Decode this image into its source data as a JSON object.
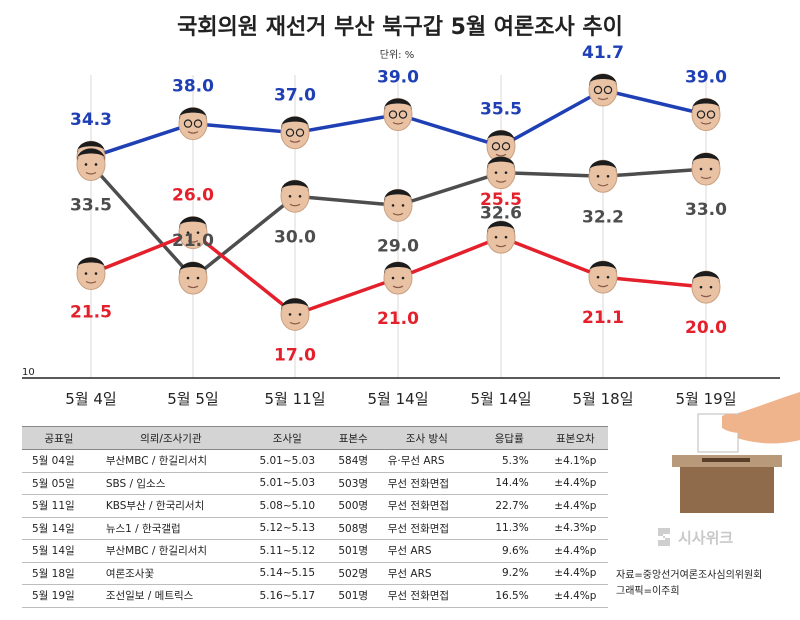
{
  "title": "국회의원 재선거 부산 북구갑 5월 여론조사 추이",
  "unit_label": "단위: %",
  "chart_data": {
    "type": "line",
    "title": "국회의원 재선거 부산 북구갑 5월 여론조사 추이",
    "xlabel": "",
    "ylabel": "",
    "categories": [
      "5월 4일",
      "5월 5일",
      "5월 11일",
      "5월 14일",
      "5월 14일",
      "5월 18일",
      "5월 19일"
    ],
    "y_axis_min_label": "10",
    "series": [
      {
        "color": "#1f3fb4",
        "values": [
          34.3,
          38.0,
          37.0,
          39.0,
          35.5,
          41.7,
          39.0
        ]
      },
      {
        "color": "#4d4d4d",
        "values": [
          33.5,
          21.0,
          30.0,
          29.0,
          32.6,
          32.2,
          33.0
        ]
      },
      {
        "color": "#e3202b",
        "values": [
          21.5,
          26.0,
          17.0,
          21.0,
          25.5,
          21.1,
          20.0
        ]
      }
    ]
  },
  "table": {
    "headers": [
      "공표일",
      "의뢰/조사기관",
      "조사일",
      "표본수",
      "조사 방식",
      "응답률",
      "표본오차"
    ],
    "rows": [
      [
        "5월 04일",
        "부산MBC / 한길리서치",
        "5.01~5.03",
        "584명",
        "유·무선 ARS",
        "5.3%",
        "±4.1%p"
      ],
      [
        "5월 05일",
        "SBS / 입소스",
        "5.01~5.03",
        "503명",
        "무선 전화면접",
        "14.4%",
        "±4.4%p"
      ],
      [
        "5월 11일",
        "KBS부산 / 한국리서치",
        "5.08~5.10",
        "500명",
        "무선 전화면접",
        "22.7%",
        "±4.4%p"
      ],
      [
        "5월 14일",
        "뉴스1 / 한국갤럽",
        "5.12~5.13",
        "508명",
        "무선 전화면접",
        "11.3%",
        "±4.3%p"
      ],
      [
        "5월 14일",
        "부산MBC / 한길리서치",
        "5.11~5.12",
        "501명",
        "무선 ARS",
        "9.6%",
        "±4.4%p"
      ],
      [
        "5월 18일",
        "여론조사꽃",
        "5.14~5.15",
        "502명",
        "무선 ARS",
        "9.2%",
        "±4.4%p"
      ],
      [
        "5월 19일",
        "조선일보 / 메트릭스",
        "5.16~5.17",
        "501명",
        "무선 전화면접",
        "16.5%",
        "±4.4%p"
      ]
    ]
  },
  "logo": "시사위크",
  "credits": [
    "자료=중앙선거여론조사심의위원회",
    "그래픽=이주희"
  ]
}
